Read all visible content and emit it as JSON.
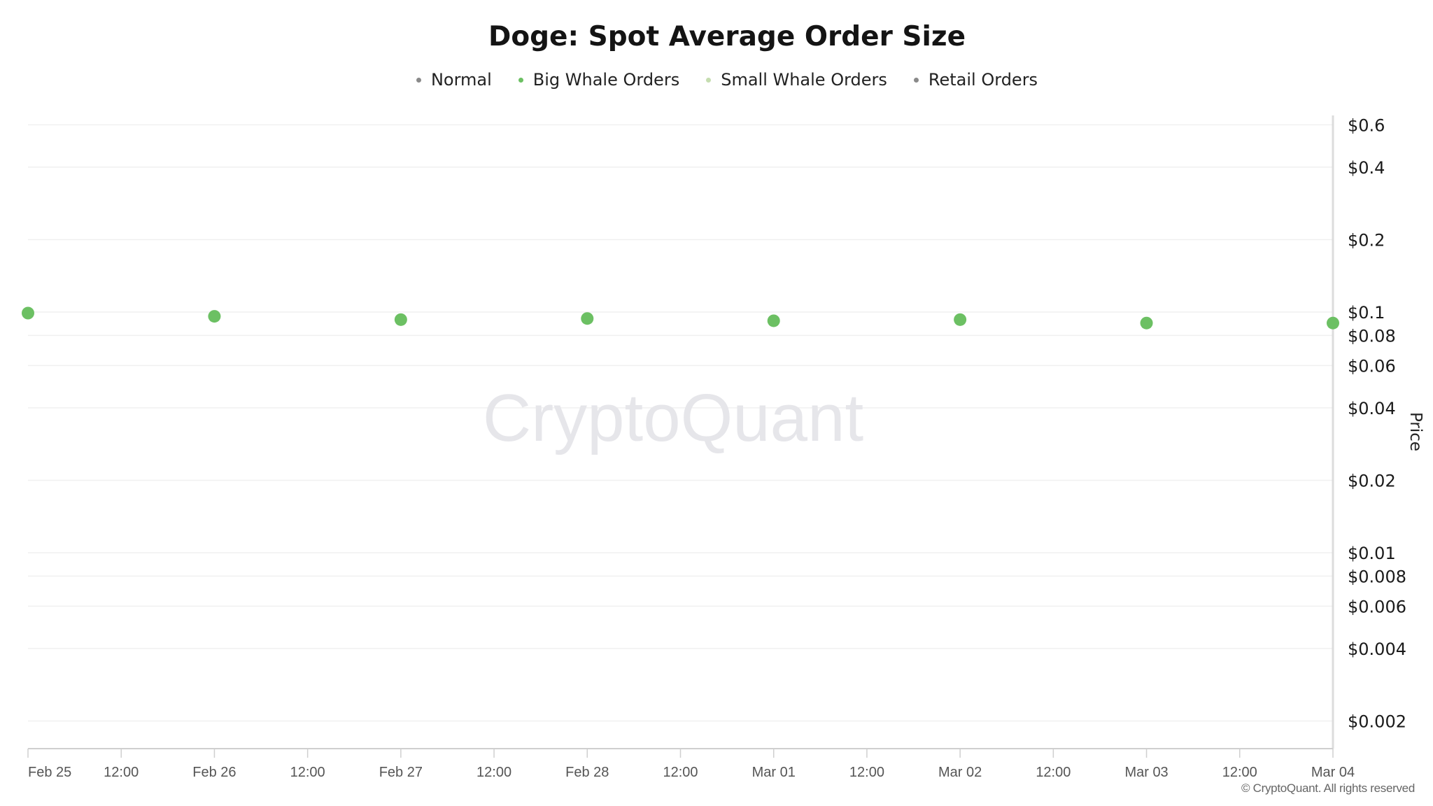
{
  "chart_data": {
    "type": "scatter",
    "title": "Doge: Spot Average Order Size",
    "ylabel": "Price",
    "yscale": "log",
    "ylim": [
      0.0015,
      0.75
    ],
    "xlim": [
      "2025-02-25T00:00",
      "2025-03-04T00:00"
    ],
    "x_ticks": [
      {
        "t": "2025-02-25T00:00",
        "label": "Feb 25"
      },
      {
        "t": "2025-02-25T12:00",
        "label": "12:00"
      },
      {
        "t": "2025-02-26T00:00",
        "label": "Feb 26"
      },
      {
        "t": "2025-02-26T12:00",
        "label": "12:00"
      },
      {
        "t": "2025-02-27T00:00",
        "label": "Feb 27"
      },
      {
        "t": "2025-02-27T12:00",
        "label": "12:00"
      },
      {
        "t": "2025-02-28T00:00",
        "label": "Feb 28"
      },
      {
        "t": "2025-02-28T12:00",
        "label": "12:00"
      },
      {
        "t": "2025-03-01T00:00",
        "label": "Mar 01"
      },
      {
        "t": "2025-03-01T12:00",
        "label": "12:00"
      },
      {
        "t": "2025-03-02T00:00",
        "label": "Mar 02"
      },
      {
        "t": "2025-03-02T12:00",
        "label": "12:00"
      },
      {
        "t": "2025-03-03T00:00",
        "label": "Mar 03"
      },
      {
        "t": "2025-03-03T12:00",
        "label": "12:00"
      },
      {
        "t": "2025-03-04T00:00",
        "label": "Mar 04"
      }
    ],
    "y_ticks": [
      {
        "v": 0.6,
        "label": "$0.6"
      },
      {
        "v": 0.4,
        "label": "$0.4"
      },
      {
        "v": 0.2,
        "label": "$0.2"
      },
      {
        "v": 0.1,
        "label": "$0.1"
      },
      {
        "v": 0.08,
        "label": "$0.08"
      },
      {
        "v": 0.06,
        "label": "$0.06"
      },
      {
        "v": 0.04,
        "label": "$0.04"
      },
      {
        "v": 0.02,
        "label": "$0.02"
      },
      {
        "v": 0.01,
        "label": "$0.01"
      },
      {
        "v": 0.008,
        "label": "$0.008"
      },
      {
        "v": 0.006,
        "label": "$0.006"
      },
      {
        "v": 0.004,
        "label": "$0.004"
      },
      {
        "v": 0.002,
        "label": "$0.002"
      }
    ],
    "legend_position": "top-center",
    "grid": true,
    "series": [
      {
        "name": "Normal",
        "color": "#8a8a8a",
        "points": []
      },
      {
        "name": "Big Whale Orders",
        "color": "#6cc063",
        "points": [
          {
            "x": "2025-02-25T00:00",
            "y": 0.099
          },
          {
            "x": "2025-02-26T00:00",
            "y": 0.096
          },
          {
            "x": "2025-02-27T00:00",
            "y": 0.093
          },
          {
            "x": "2025-02-28T00:00",
            "y": 0.094
          },
          {
            "x": "2025-03-01T00:00",
            "y": 0.092
          },
          {
            "x": "2025-03-02T00:00",
            "y": 0.093
          },
          {
            "x": "2025-03-03T00:00",
            "y": 0.09
          },
          {
            "x": "2025-03-04T00:00",
            "y": 0.09
          }
        ]
      },
      {
        "name": "Small Whale Orders",
        "color": "#c5ddb0",
        "points": []
      },
      {
        "name": "Retail Orders",
        "color": "#8a8a8a",
        "points": []
      }
    ]
  },
  "watermark": "CryptoQuant",
  "copyright": "© CryptoQuant. All rights reserved"
}
